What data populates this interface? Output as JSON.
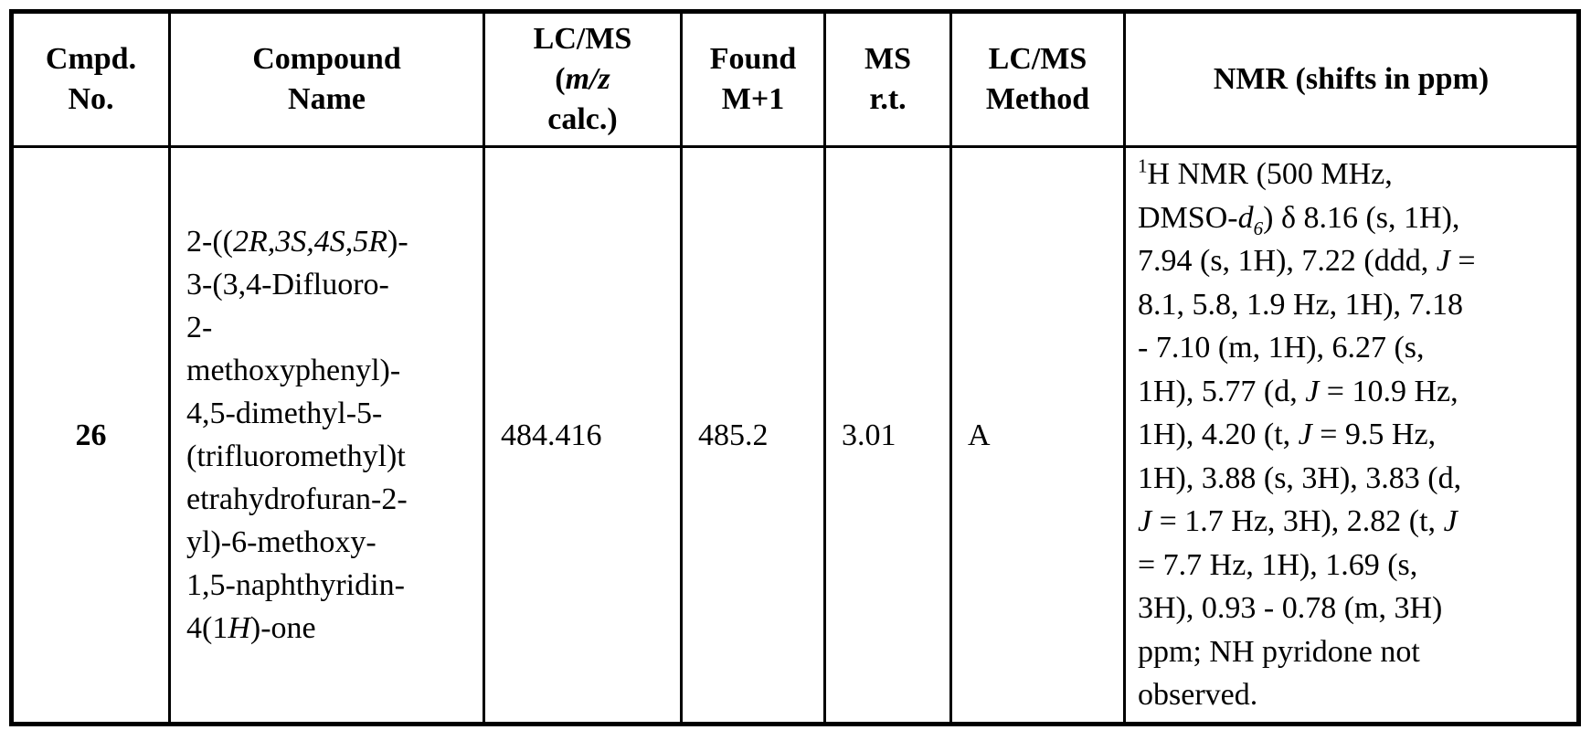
{
  "table": {
    "colors": {
      "border": "#000000",
      "text": "#000000",
      "background": "#ffffff"
    },
    "headers": [
      {
        "name": "cmpd-no",
        "segments": [
          {
            "t": "Cmpd.\nNo."
          }
        ]
      },
      {
        "name": "compound-name",
        "segments": [
          {
            "t": "Compound\nName"
          }
        ]
      },
      {
        "name": "lcms-mz-calc",
        "segments": [
          {
            "t": "LC/MS\n("
          },
          {
            "t": "m/z",
            "style": "i"
          },
          {
            "t": "\ncalc.)"
          }
        ]
      },
      {
        "name": "found-m-plus-1",
        "segments": [
          {
            "t": "Found\nM+1"
          }
        ]
      },
      {
        "name": "ms-rt",
        "segments": [
          {
            "t": "MS\nr.t."
          }
        ]
      },
      {
        "name": "lcms-method",
        "segments": [
          {
            "t": "LC/MS\nMethod"
          }
        ]
      },
      {
        "name": "nmr",
        "segments": [
          {
            "t": "NMR (shifts in ppm)"
          }
        ]
      }
    ],
    "row": {
      "cmpd_no": "26",
      "compound_name_segments": [
        {
          "t": "2-(("
        },
        {
          "t": "2R,3S,4S,5R",
          "style": "i"
        },
        {
          "t": ")-\n3-(3,4-Difluoro-\n2-\nmethoxyphenyl)-\n4,5-dimethyl-5-\n(trifluoromethyl)t\netrahydrofuran-2-\nyl)-6-methoxy-\n1,5-naphthyridin-\n4(1"
        },
        {
          "t": "H",
          "style": "i"
        },
        {
          "t": ")-one"
        }
      ],
      "lcms_mz_calc": "484.416",
      "found_m_plus_1": "485.2",
      "ms_rt": "3.01",
      "lcms_method": "A",
      "nmr_segments": [
        {
          "t": "1",
          "style": "sup"
        },
        {
          "t": "H NMR (500 MHz,\nDMSO-"
        },
        {
          "t": "d",
          "style": "i"
        },
        {
          "t": "6",
          "style": "sub"
        },
        {
          "t": ") δ 8.16 (s, 1H),\n7.94 (s, 1H), 7.22 (ddd, "
        },
        {
          "t": "J",
          "style": "i"
        },
        {
          "t": " =\n8.1, 5.8, 1.9 Hz, 1H), 7.18\n- 7.10 (m, 1H), 6.27 (s,\n1H), 5.77 (d, "
        },
        {
          "t": "J",
          "style": "i"
        },
        {
          "t": " = 10.9 Hz,\n1H), 4.20 (t, "
        },
        {
          "t": "J",
          "style": "i"
        },
        {
          "t": " = 9.5 Hz,\n1H), 3.88 (s, 3H), 3.83 (d,\n"
        },
        {
          "t": "J",
          "style": "i"
        },
        {
          "t": " = 1.7 Hz, 3H), 2.82 (t, "
        },
        {
          "t": "J",
          "style": "i"
        },
        {
          "t": "\n= 7.7 Hz, 1H), 1.69 (s,\n3H), 0.93 - 0.78 (m, 3H)\nppm; NH pyridone not\nobserved."
        }
      ]
    }
  }
}
